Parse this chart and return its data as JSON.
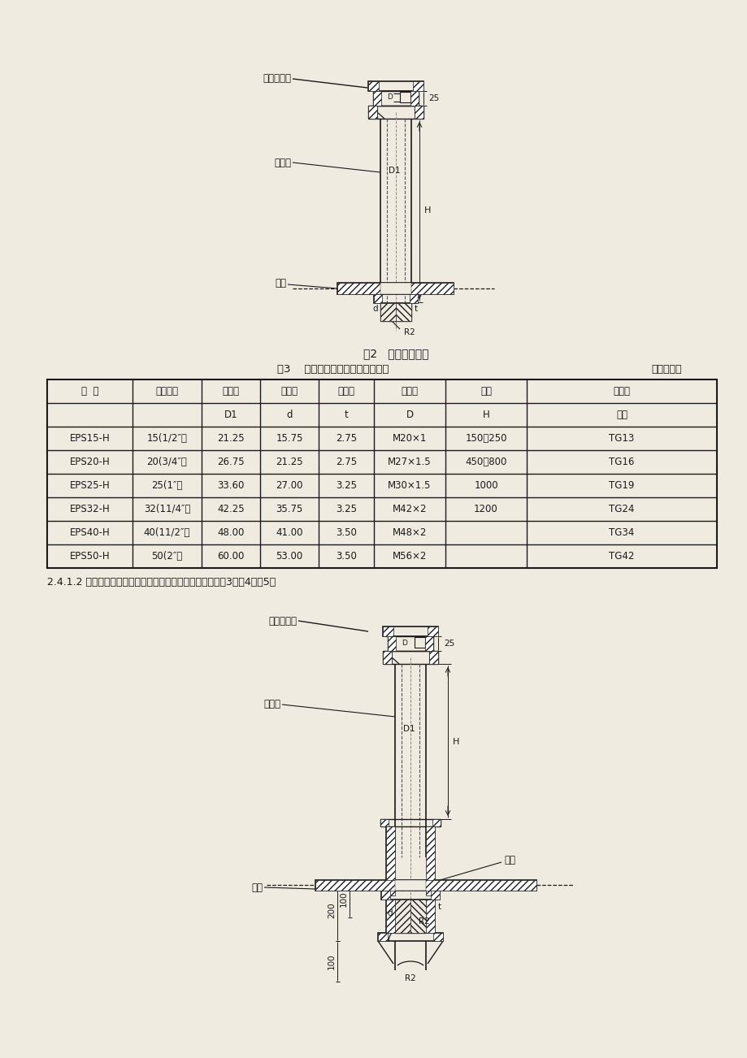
{
  "fig1_caption": "图2   填料函电缆管",
  "table_title": "表3    填料函电缆管型号和基本尺寸",
  "table_unit": "单位为毫米",
  "col_headers_row1": [
    "型  号",
    "公称通径",
    "管外径",
    "管内径",
    "管壁厚",
    "管螺纹",
    "管高",
    "填料函"
  ],
  "col_headers_row2": [
    "",
    "",
    "D1",
    "d",
    "t",
    "D",
    "H",
    "型号"
  ],
  "table_data": [
    [
      "EPS15-H",
      "15(1/2″）",
      "21.25",
      "15.75",
      "2.75",
      "M20×1",
      "150，250",
      "TG13"
    ],
    [
      "EPS20-H",
      "20(3/4″）",
      "26.75",
      "21.25",
      "2.75",
      "M27×1.5",
      "450，800",
      "TG16"
    ],
    [
      "EPS25-H",
      "25(1″）",
      "33.60",
      "27.00",
      "3.25",
      "M30×1.5",
      "1000",
      "TG19"
    ],
    [
      "EPS32-H",
      "32(11/4″）",
      "42.25",
      "35.75",
      "3.25",
      "M42×2",
      "1200",
      "TG24"
    ],
    [
      "EPS40-H",
      "40(11/2″）",
      "48.00",
      "41.00",
      "3.50",
      "M48×2",
      "",
      "TG34"
    ],
    [
      "EPS50-H",
      "50(2″）",
      "60.00",
      "53.00",
      "3.50",
      "M56×2",
      "",
      "TG42"
    ]
  ],
  "text_section": "2.4.1.2 带套筒的填料函电缆管型号、结构和基本尺寸，按图3、表4、表5。",
  "bg_color": "#f0ebe0",
  "line_color": "#1a1a1a"
}
